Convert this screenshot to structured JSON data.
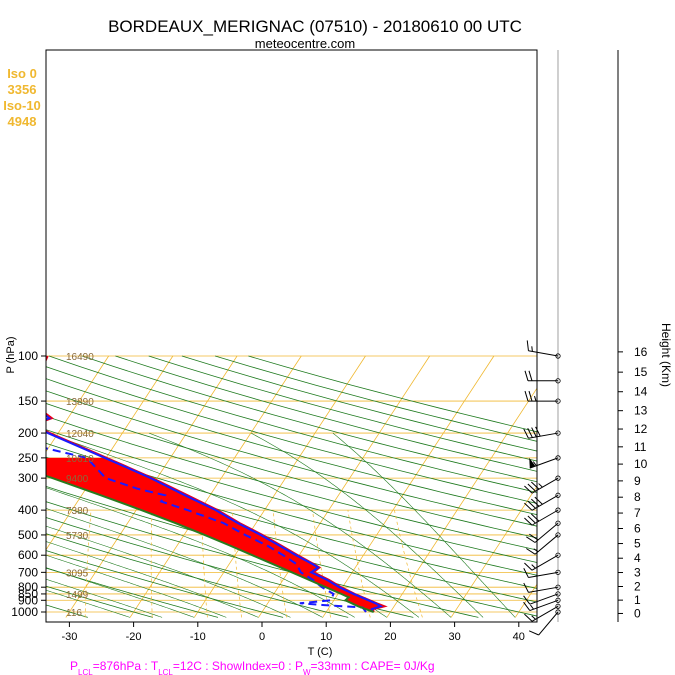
{
  "chart_data": {
    "type": "line",
    "title": "BORDEAUX_MERIGNAC (07510) - 20180610 00 UTC",
    "subtitle": "meteocentre.com",
    "xlabel": "T (C)",
    "ylabel": "P (hPa)",
    "y2label": "Height (Km)",
    "xlim": [
      -35,
      45
    ],
    "ylim": [
      1050,
      100
    ],
    "x_ticks": [
      -30,
      -20,
      -10,
      0,
      10,
      20,
      30,
      40
    ],
    "p_ticks": [
      100,
      150,
      200,
      250,
      300,
      400,
      500,
      600,
      700,
      800,
      850,
      900,
      1000
    ],
    "height_ticks": [
      0,
      1,
      2,
      3,
      4,
      5,
      6,
      7,
      8,
      9,
      10,
      11,
      12,
      13,
      14,
      15,
      16
    ],
    "geopotential_labels": [
      {
        "p": 100,
        "label": "16490"
      },
      {
        "p": 150,
        "label": "13890"
      },
      {
        "p": 200,
        "label": "12040"
      },
      {
        "p": 250,
        "label": "10610"
      },
      {
        "p": 300,
        "label": "9400"
      },
      {
        "p": 400,
        "label": "7380"
      },
      {
        "p": 500,
        "label": "5730"
      },
      {
        "p": 700,
        "label": "3095"
      },
      {
        "p": 850,
        "label": "1499"
      },
      {
        "p": 1000,
        "label": "116"
      }
    ],
    "freezing_info": [
      "Iso 0",
      "3356",
      "Iso-10",
      "4948"
    ],
    "footer": {
      "parts": [
        {
          "text": "P",
          "sub": false
        },
        {
          "text": "LCL",
          "sub": true
        },
        {
          "text": "=876hPa : T",
          "sub": false
        },
        {
          "text": "LCL",
          "sub": true
        },
        {
          "text": "=12C : ShowIndex=0 : P",
          "sub": false
        },
        {
          "text": "W",
          "sub": true
        },
        {
          "text": "=33mm : CAPE= 0J/Kg",
          "sub": false
        }
      ]
    },
    "series": [
      {
        "role": "temperature",
        "color": "#e8001a",
        "points": [
          [
            1000,
            17.4
          ],
          [
            975,
            17.0
          ],
          [
            950,
            18.5
          ],
          [
            925,
            17.0
          ],
          [
            900,
            15.6
          ],
          [
            850,
            12.6
          ],
          [
            800,
            9.8
          ],
          [
            750,
            7.2
          ],
          [
            700,
            4.0
          ],
          [
            670,
            4.4
          ],
          [
            650,
            3.2
          ],
          [
            600,
            -0.2
          ],
          [
            550,
            -3.8
          ],
          [
            500,
            -7.8
          ],
          [
            450,
            -12.5
          ],
          [
            400,
            -17.3
          ],
          [
            350,
            -23.5
          ],
          [
            300,
            -30.7
          ],
          [
            250,
            -39.9
          ],
          [
            200,
            -51.3
          ],
          [
            185,
            -54.5
          ],
          [
            175,
            -52.5
          ],
          [
            150,
            -57.8
          ],
          [
            125,
            -58.7
          ],
          [
            100,
            -59.5
          ]
        ]
      },
      {
        "role": "temperature_envelope",
        "color": "#1a1aff",
        "points": [
          [
            1000,
            17.2
          ],
          [
            975,
            16.8
          ],
          [
            950,
            17.9
          ],
          [
            925,
            16.8
          ],
          [
            900,
            15.4
          ],
          [
            850,
            12.4
          ],
          [
            800,
            9.5
          ],
          [
            750,
            6.9
          ],
          [
            700,
            3.6
          ],
          [
            670,
            4.2
          ],
          [
            650,
            3.0
          ],
          [
            600,
            -0.5
          ],
          [
            550,
            -4.1
          ],
          [
            500,
            -8.1
          ],
          [
            450,
            -12.8
          ],
          [
            400,
            -17.6
          ],
          [
            350,
            -23.9
          ],
          [
            300,
            -31.0
          ],
          [
            250,
            -40.2
          ],
          [
            200,
            -51.6
          ],
          [
            185,
            -54.8
          ],
          [
            175,
            -52.9
          ],
          [
            150,
            -58.1
          ],
          [
            125,
            -59.0
          ],
          [
            100,
            -59.8
          ]
        ]
      },
      {
        "role": "dewpoint",
        "color": "#1a1aff",
        "dashed": true,
        "points": [
          [
            1000,
            16.2
          ],
          [
            960,
            15.2
          ],
          [
            940,
            9.0
          ],
          [
            925,
            5.0
          ],
          [
            900,
            9.5
          ],
          [
            850,
            9.3
          ],
          [
            800,
            6.8
          ],
          [
            750,
            4.7
          ],
          [
            700,
            2.0
          ],
          [
            650,
            0.5
          ],
          [
            600,
            -2.5
          ],
          [
            550,
            -6.0
          ],
          [
            500,
            -10.5
          ],
          [
            450,
            -15.0
          ],
          [
            400,
            -22.0
          ],
          [
            370,
            -27.0
          ],
          [
            350,
            -27.0
          ],
          [
            330,
            -32.0
          ],
          [
            300,
            -38.0
          ],
          [
            250,
            -43.0
          ],
          [
            200,
            -62.0
          ],
          [
            195,
            -68.0
          ],
          [
            150,
            -75.0
          ],
          [
            130,
            -64.0
          ],
          [
            120,
            -75.0
          ],
          [
            100,
            -78.0
          ]
        ]
      },
      {
        "role": "parcel",
        "color": "#ffee00",
        "points": [
          [
            1000,
            17.4
          ],
          [
            950,
            14.4
          ],
          [
            900,
            11.8
          ],
          [
            876,
            12.0
          ],
          [
            850,
            10.5
          ],
          [
            800,
            7.4
          ],
          [
            750,
            4.1
          ],
          [
            700,
            0.6
          ],
          [
            650,
            -3.2
          ],
          [
            600,
            -7.3
          ],
          [
            550,
            -11.8
          ],
          [
            500,
            -16.8
          ],
          [
            450,
            -22.5
          ],
          [
            400,
            -29.2
          ],
          [
            350,
            -37.0
          ],
          [
            300,
            -46.3
          ],
          [
            250,
            -57.5
          ]
        ]
      }
    ],
    "wind_barbs": [
      {
        "p": 1000,
        "dir": 220,
        "kt": 10
      },
      {
        "p": 950,
        "dir": 240,
        "kt": 15
      },
      {
        "p": 900,
        "dir": 250,
        "kt": 15
      },
      {
        "p": 850,
        "dir": 250,
        "kt": 10
      },
      {
        "p": 800,
        "dir": 260,
        "kt": 10
      },
      {
        "p": 700,
        "dir": 260,
        "kt": 10
      },
      {
        "p": 600,
        "dir": 240,
        "kt": 15
      },
      {
        "p": 500,
        "dir": 230,
        "kt": 15
      },
      {
        "p": 450,
        "dir": 230,
        "kt": 20
      },
      {
        "p": 400,
        "dir": 240,
        "kt": 30
      },
      {
        "p": 350,
        "dir": 240,
        "kt": 40
      },
      {
        "p": 300,
        "dir": 240,
        "kt": 35
      },
      {
        "p": 250,
        "dir": 250,
        "kt": 55
      },
      {
        "p": 200,
        "dir": 260,
        "kt": 40
      },
      {
        "p": 150,
        "dir": 270,
        "kt": 25
      },
      {
        "p": 125,
        "dir": 270,
        "kt": 20
      },
      {
        "p": 100,
        "dir": 280,
        "kt": 15
      }
    ],
    "legend": "none",
    "grid": true
  },
  "colors": {
    "isotherm": "#f0b830",
    "isobar": "#f0b830",
    "dry_adiabat": "#1e7a1e",
    "moist_adiabat": "#1e7a1e",
    "mixing_ratio": "#f0b830",
    "cape_fill": "#ff0000",
    "parcel_fill": "#ffee00",
    "freezing_text": "#f0b830",
    "footer_text": "#ff00ff",
    "geopotential_text": "#8a6a3a"
  }
}
